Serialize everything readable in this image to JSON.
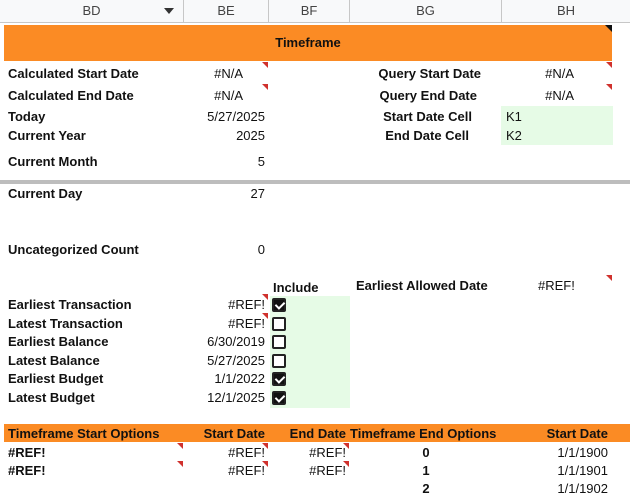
{
  "columns": [
    {
      "label": "BD",
      "has_dropdown": true
    },
    {
      "label": "BE"
    },
    {
      "label": "BF"
    },
    {
      "label": "BG"
    },
    {
      "label": "BH"
    }
  ],
  "section_title": "Timeframe",
  "left_rows": [
    {
      "label": "Calculated Start Date",
      "value": "#N/A",
      "flag": true
    },
    {
      "label": "Calculated End Date",
      "value": "#N/A",
      "flag": true
    },
    {
      "label": "Today",
      "value": "5/27/2025"
    },
    {
      "label": "Current Year",
      "value": "2025"
    },
    {
      "label": "Current Month",
      "value": "5"
    },
    {
      "label": "Current Day",
      "value": "27"
    },
    {
      "label": "Uncategorized Count",
      "value": "0"
    }
  ],
  "right_rows": [
    {
      "label": "Query Start Date",
      "value": "#N/A",
      "flag": true
    },
    {
      "label": "Query End Date",
      "value": "#N/A",
      "flag": true
    },
    {
      "label": "Start Date Cell",
      "value": "K1"
    },
    {
      "label": "End Date Cell",
      "value": "K2"
    }
  ],
  "include_header": "Include",
  "earliest_allowed": {
    "label": "Earliest Allowed Date",
    "value": "#REF!"
  },
  "checklist": [
    {
      "label": "Earliest Transaction",
      "value": "#REF!",
      "checked": true,
      "flag": true
    },
    {
      "label": "Latest Transaction",
      "value": "#REF!",
      "checked": false,
      "flag": true
    },
    {
      "label": "Earliest Balance",
      "value": "6/30/2019",
      "checked": false
    },
    {
      "label": "Latest Balance",
      "value": "5/27/2025",
      "checked": false
    },
    {
      "label": "Earliest Budget",
      "value": "1/1/2022",
      "checked": true
    },
    {
      "label": "Latest Budget",
      "value": "12/1/2025",
      "checked": true
    }
  ],
  "options_header": {
    "start_options": "Timeframe Start Options",
    "start_date": "Start Date",
    "end_date": "End Date",
    "end_options": "Timeframe End Options",
    "end_start_date": "Start Date"
  },
  "options_rows": [
    {
      "start_option": "#REF!",
      "start_date": "#REF!",
      "end_date": "#REF!",
      "end_option": "0",
      "end_start_date": "1/1/1900"
    },
    {
      "start_option": "#REF!",
      "start_date": "#REF!",
      "end_date": "#REF!",
      "end_option": "1",
      "end_start_date": "1/1/1901"
    },
    {
      "start_option": "",
      "start_date": "",
      "end_date": "",
      "end_option": "2",
      "end_start_date": "1/1/1902"
    }
  ],
  "colors": {
    "accent": "#fb8b24",
    "include_bg": "#e6fbe6",
    "error_flag": "#d0312d"
  }
}
